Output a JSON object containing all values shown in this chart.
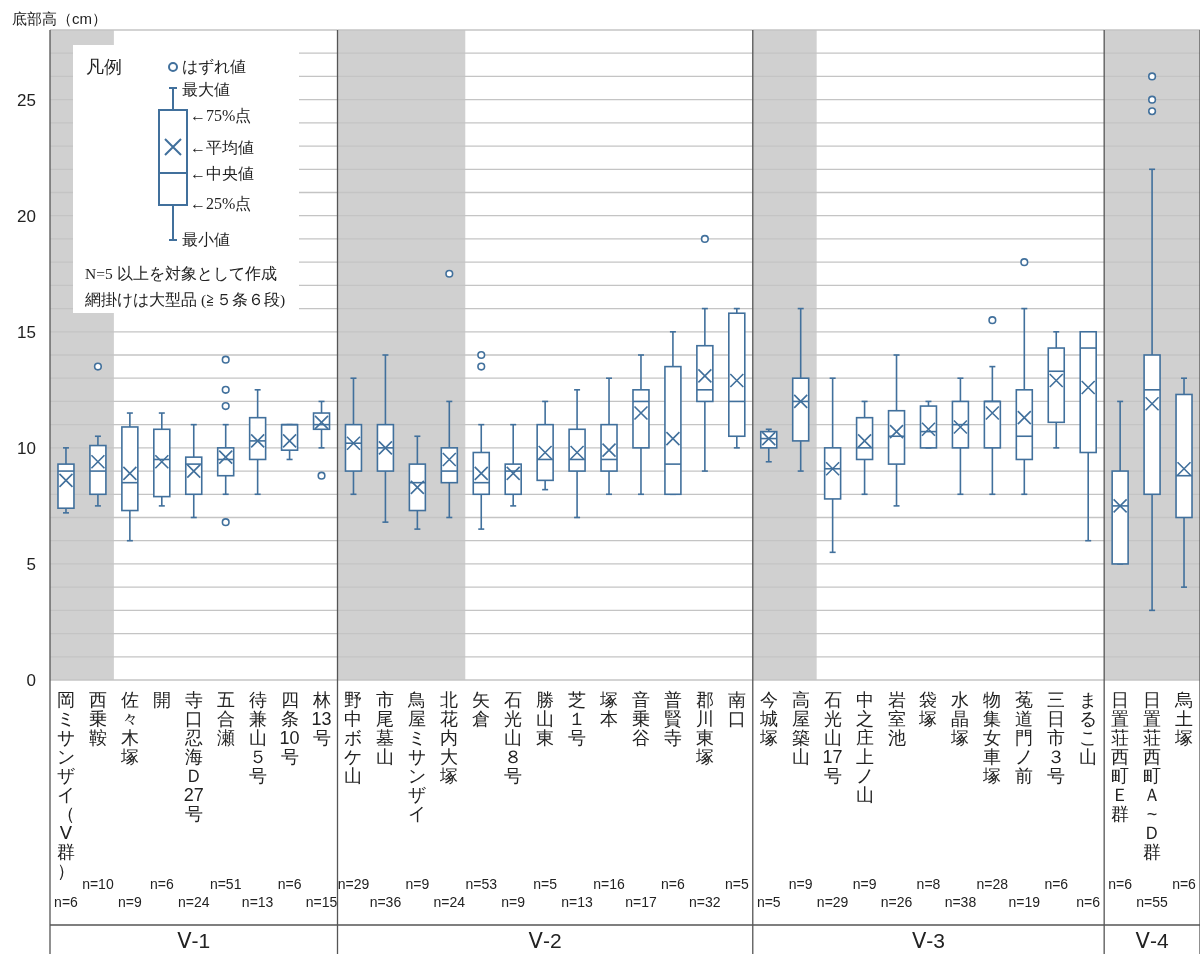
{
  "chart_data": [
    {
      "type": "box",
      "ylabel": "底部高（cm）",
      "xlabel": "Ⅴ-1",
      "legend_title": "凡例",
      "color": "#41709c",
      "grid": "y",
      "ylim": [
        0,
        28
      ],
      "yticks": [
        0,
        {
          "value": 1,
          "label": null
        },
        {
          "value": 2,
          "label": null
        },
        {
          "value": 3,
          "label": null
        },
        {
          "value": 4,
          "label": null
        },
        5,
        {
          "value": 6,
          "label": null
        },
        {
          "value": 7,
          "label": null
        },
        {
          "value": 8,
          "label": null
        },
        {
          "value": 9,
          "label": null
        },
        10,
        {
          "value": 11,
          "label": null
        },
        {
          "value": 12,
          "label": null
        },
        {
          "value": 13,
          "label": null
        },
        {
          "value": 14,
          "label": null
        },
        15,
        {
          "value": 16,
          "label": null
        },
        {
          "value": 17,
          "label": null
        },
        {
          "value": 18,
          "label": null
        },
        {
          "value": 19,
          "label": null
        },
        20,
        {
          "value": 21,
          "label": null
        },
        {
          "value": 22,
          "label": null
        },
        {
          "value": 23,
          "label": null
        },
        {
          "value": 24,
          "label": null
        },
        25,
        {
          "value": 26,
          "label": null
        },
        {
          "value": 27,
          "label": null
        },
        {
          "value": 28,
          "label": null
        }
      ],
      "categories": [
        "岡ミサンザイ（Ⅴ群）",
        "西乗鞍",
        "佐々木塚",
        "開",
        "寺口忍海Ｄ27号",
        "五合瀬",
        "待兼山５号",
        "四条10号",
        "林13号"
      ],
      "bands": [
        {
          "axis": "x",
          "from": "岡ミサンザイ（Ⅴ群）",
          "to": "西乗鞍",
          "color": "#d0d0d0"
        }
      ],
      "boxes": [
        {
          "low": 7.2,
          "q1": 7.4,
          "median": 9.0,
          "q3": 9.3,
          "high": 10.0,
          "mean": 8.6
        },
        {
          "low": 7.5,
          "q1": 8.0,
          "median": 9.0,
          "q3": 10.1,
          "high": 10.5,
          "mean": 9.4,
          "outliers": [
            13.5
          ]
        },
        {
          "low": 6.0,
          "q1": 7.3,
          "median": 8.5,
          "q3": 10.9,
          "high": 11.5,
          "mean": 8.9
        },
        {
          "low": 7.5,
          "q1": 7.9,
          "median": 9.5,
          "q3": 10.8,
          "high": 11.5,
          "mean": 9.4
        },
        {
          "low": 7.0,
          "q1": 8.0,
          "median": 9.3,
          "q3": 9.6,
          "high": 11.0,
          "mean": 9.0
        },
        {
          "low": 8.0,
          "q1": 8.8,
          "median": 9.5,
          "q3": 10.0,
          "high": 11.0,
          "mean": 9.6,
          "outliers": [
            13.8,
            12.5,
            11.8,
            6.8
          ]
        },
        {
          "low": 8.0,
          "q1": 9.5,
          "median": 10.3,
          "q3": 11.3,
          "high": 12.5,
          "mean": 10.3
        },
        {
          "low": 9.5,
          "q1": 9.9,
          "median": 11.0,
          "q3": 11.0,
          "high": 11.0,
          "mean": 10.3
        },
        {
          "low": 10.0,
          "q1": 10.8,
          "median": 11.0,
          "q3": 11.5,
          "high": 12.0,
          "mean": 11.1,
          "outliers": [
            8.8
          ]
        }
      ],
      "annotations": [
        "n=6",
        "n=10",
        "n=9",
        "n=6",
        "n=24",
        "n=51",
        "n=13",
        "n=6",
        "n=15",
        "はずれ値",
        "最大値",
        "←75%点",
        "←平均値",
        "←中央値",
        "←25%点",
        "最小値",
        "N=5 以上を対象として作成",
        "網掛けは大型品 (≧５条６段)"
      ]
    },
    {
      "type": "box",
      "xlabel": "Ⅴ-2",
      "color": "#41709c",
      "grid": "y",
      "ylim": [
        0,
        28
      ],
      "tick_labels": "x",
      "yticks": [
        0,
        {
          "value": 1,
          "label": null
        },
        {
          "value": 2,
          "label": null
        },
        {
          "value": 3,
          "label": null
        },
        {
          "value": 4,
          "label": null
        },
        5,
        {
          "value": 6,
          "label": null
        },
        {
          "value": 7,
          "label": null
        },
        {
          "value": 8,
          "label": null
        },
        {
          "value": 9,
          "label": null
        },
        10,
        {
          "value": 11,
          "label": null
        },
        {
          "value": 12,
          "label": null
        },
        {
          "value": 13,
          "label": null
        },
        {
          "value": 14,
          "label": null
        },
        15,
        {
          "value": 16,
          "label": null
        },
        {
          "value": 17,
          "label": null
        },
        {
          "value": 18,
          "label": null
        },
        {
          "value": 19,
          "label": null
        },
        20,
        {
          "value": 21,
          "label": null
        },
        {
          "value": 22,
          "label": null
        },
        {
          "value": 23,
          "label": null
        },
        {
          "value": 24,
          "label": null
        },
        25,
        {
          "value": 26,
          "label": null
        },
        {
          "value": 27,
          "label": null
        },
        {
          "value": 28,
          "label": null
        }
      ],
      "categories": [
        "野中ボケ山",
        "市尾墓山",
        "鳥屋ミサンザイ",
        "北花内大塚",
        "矢倉",
        "石光山８号",
        "勝山東",
        "芝１号",
        "塚本",
        "音乗谷",
        "普賢寺",
        "郡川東塚",
        "南口"
      ],
      "bands": [
        {
          "axis": "x",
          "from": "野中ボケ山",
          "to": "北花内大塚",
          "color": "#d0d0d0"
        }
      ],
      "boxes": [
        {
          "low": 8.0,
          "q1": 9.0,
          "median": 10.2,
          "q3": 11.0,
          "high": 13.0,
          "mean": 10.2
        },
        {
          "low": 6.8,
          "q1": 9.0,
          "median": 10.0,
          "q3": 11.0,
          "high": 14.0,
          "mean": 10.0
        },
        {
          "low": 6.5,
          "q1": 7.3,
          "median": 8.5,
          "q3": 9.3,
          "high": 10.5,
          "mean": 8.3
        },
        {
          "low": 7.0,
          "q1": 8.5,
          "median": 9.0,
          "q3": 10.0,
          "high": 12.0,
          "mean": 9.5,
          "outliers": [
            17.5
          ]
        },
        {
          "low": 6.5,
          "q1": 8.0,
          "median": 8.5,
          "q3": 9.8,
          "high": 11.0,
          "mean": 8.9,
          "outliers": [
            14.0,
            13.5
          ]
        },
        {
          "low": 7.5,
          "q1": 8.0,
          "median": 9.0,
          "q3": 9.3,
          "high": 11.0,
          "mean": 8.9
        },
        {
          "low": 8.2,
          "q1": 8.6,
          "median": 9.5,
          "q3": 11.0,
          "high": 12.0,
          "mean": 9.8
        },
        {
          "low": 7.0,
          "q1": 9.0,
          "median": 9.5,
          "q3": 10.8,
          "high": 12.5,
          "mean": 9.8
        },
        {
          "low": 8.0,
          "q1": 9.0,
          "median": 9.5,
          "q3": 11.0,
          "high": 13.0,
          "mean": 9.9
        },
        {
          "low": 8.0,
          "q1": 10.0,
          "median": 12.0,
          "q3": 12.5,
          "high": 14.0,
          "mean": 11.5
        },
        {
          "low": 8.0,
          "q1": 8.0,
          "median": 9.3,
          "q3": 13.5,
          "high": 15.0,
          "mean": 10.4
        },
        {
          "low": 9.0,
          "q1": 12.0,
          "median": 12.5,
          "q3": 14.4,
          "high": 16.0,
          "mean": 13.1,
          "outliers": [
            19.0
          ]
        },
        {
          "low": 10.0,
          "q1": 10.5,
          "median": 12.0,
          "q3": 15.8,
          "high": 16.0,
          "mean": 12.9
        }
      ],
      "annotations": [
        "n=29",
        "n=36",
        "n=9",
        "n=24",
        "n=53",
        "n=9",
        "n=5",
        "n=13",
        "n=16",
        "n=17",
        "n=6",
        "n=32",
        "n=5"
      ]
    },
    {
      "type": "box",
      "xlabel": "Ⅴ-3",
      "color": "#41709c",
      "grid": "y",
      "ylim": [
        0,
        28
      ],
      "tick_labels": "x",
      "yticks": [
        0,
        {
          "value": 1,
          "label": null
        },
        {
          "value": 2,
          "label": null
        },
        {
          "value": 3,
          "label": null
        },
        {
          "value": 4,
          "label": null
        },
        5,
        {
          "value": 6,
          "label": null
        },
        {
          "value": 7,
          "label": null
        },
        {
          "value": 8,
          "label": null
        },
        {
          "value": 9,
          "label": null
        },
        10,
        {
          "value": 11,
          "label": null
        },
        {
          "value": 12,
          "label": null
        },
        {
          "value": 13,
          "label": null
        },
        {
          "value": 14,
          "label": null
        },
        15,
        {
          "value": 16,
          "label": null
        },
        {
          "value": 17,
          "label": null
        },
        {
          "value": 18,
          "label": null
        },
        {
          "value": 19,
          "label": null
        },
        20,
        {
          "value": 21,
          "label": null
        },
        {
          "value": 22,
          "label": null
        },
        {
          "value": 23,
          "label": null
        },
        {
          "value": 24,
          "label": null
        },
        25,
        {
          "value": 26,
          "label": null
        },
        {
          "value": 27,
          "label": null
        },
        {
          "value": 28,
          "label": null
        }
      ],
      "categories": [
        "今城塚",
        "高屋築山",
        "石光山17号",
        "中之庄上ノ山",
        "岩室池",
        "袋塚",
        "水晶塚",
        "物集女車塚",
        "菟道門ノ前",
        "三日市３号",
        "まるこ山"
      ],
      "bands": [
        {
          "axis": "x",
          "from": "今城塚",
          "to": "高屋築山",
          "color": "#d0d0d0"
        }
      ],
      "boxes": [
        {
          "low": 9.4,
          "q1": 10.0,
          "median": 10.4,
          "q3": 10.7,
          "high": 10.8,
          "mean": 10.4
        },
        {
          "low": 9.0,
          "q1": 10.3,
          "median": 12.0,
          "q3": 13.0,
          "high": 16.0,
          "mean": 12.0
        },
        {
          "low": 5.5,
          "q1": 7.8,
          "median": 9.1,
          "q3": 10.0,
          "high": 13.0,
          "mean": 9.1
        },
        {
          "low": 8.0,
          "q1": 9.5,
          "median": 10.0,
          "q3": 11.3,
          "high": 12.0,
          "mean": 10.3
        },
        {
          "low": 7.5,
          "q1": 9.3,
          "median": 10.5,
          "q3": 11.6,
          "high": 14.0,
          "mean": 10.7
        },
        {
          "low": 10.0,
          "q1": 10.0,
          "median": 10.7,
          "q3": 11.8,
          "high": 12.0,
          "mean": 10.8
        },
        {
          "low": 8.0,
          "q1": 10.0,
          "median": 11.0,
          "q3": 12.0,
          "high": 13.0,
          "mean": 10.9
        },
        {
          "low": 8.0,
          "q1": 10.0,
          "median": 12.0,
          "q3": 12.0,
          "high": 13.5,
          "mean": 11.5,
          "outliers": [
            15.5
          ]
        },
        {
          "low": 8.0,
          "q1": 9.5,
          "median": 10.5,
          "q3": 12.5,
          "high": 16.0,
          "mean": 11.3,
          "outliers": [
            18.0
          ]
        },
        {
          "low": 10.0,
          "q1": 11.1,
          "median": 13.3,
          "q3": 14.3,
          "high": 15.0,
          "mean": 12.9
        },
        {
          "low": 6.0,
          "q1": 9.8,
          "median": 14.3,
          "q3": 15.0,
          "high": 15.0,
          "mean": 12.6
        }
      ],
      "annotations": [
        "n=5",
        "n=9",
        "n=29",
        "n=9",
        "n=26",
        "n=8",
        "n=38",
        "n=28",
        "n=19",
        "n=6",
        "n=6"
      ]
    },
    {
      "type": "box",
      "xlabel": "Ⅴ-4",
      "color": "#41709c",
      "grid": "y",
      "ylim": [
        0,
        28
      ],
      "tick_labels": "x",
      "yticks": [
        0,
        {
          "value": 1,
          "label": null
        },
        {
          "value": 2,
          "label": null
        },
        {
          "value": 3,
          "label": null
        },
        {
          "value": 4,
          "label": null
        },
        5,
        {
          "value": 6,
          "label": null
        },
        {
          "value": 7,
          "label": null
        },
        {
          "value": 8,
          "label": null
        },
        {
          "value": 9,
          "label": null
        },
        10,
        {
          "value": 11,
          "label": null
        },
        {
          "value": 12,
          "label": null
        },
        {
          "value": 13,
          "label": null
        },
        {
          "value": 14,
          "label": null
        },
        15,
        {
          "value": 16,
          "label": null
        },
        {
          "value": 17,
          "label": null
        },
        {
          "value": 18,
          "label": null
        },
        {
          "value": 19,
          "label": null
        },
        20,
        {
          "value": 21,
          "label": null
        },
        {
          "value": 22,
          "label": null
        },
        {
          "value": 23,
          "label": null
        },
        {
          "value": 24,
          "label": null
        },
        25,
        {
          "value": 26,
          "label": null
        },
        {
          "value": 27,
          "label": null
        },
        {
          "value": 28,
          "label": null
        }
      ],
      "categories": [
        "日置荘西町Ｅ群",
        "日置荘西町Ａ~Ｄ群",
        "烏土塚"
      ],
      "bands": [
        {
          "axis": "x",
          "from": "日置荘西町Ｅ群",
          "to": "烏土塚",
          "color": "#d0d0d0"
        }
      ],
      "boxes": [
        {
          "low": 5.0,
          "q1": 5.0,
          "median": 7.5,
          "q3": 9.0,
          "high": 12.0,
          "mean": 7.5
        },
        {
          "low": 3.0,
          "q1": 8.0,
          "median": 12.5,
          "q3": 14.0,
          "high": 22.0,
          "mean": 11.9,
          "outliers": [
            26.0,
            25.0,
            24.5
          ]
        },
        {
          "low": 4.0,
          "q1": 7.0,
          "median": 8.8,
          "q3": 12.3,
          "high": 13.0,
          "mean": 9.1
        }
      ],
      "annotations": [
        "n=6",
        "n=55",
        "n=6"
      ]
    }
  ]
}
